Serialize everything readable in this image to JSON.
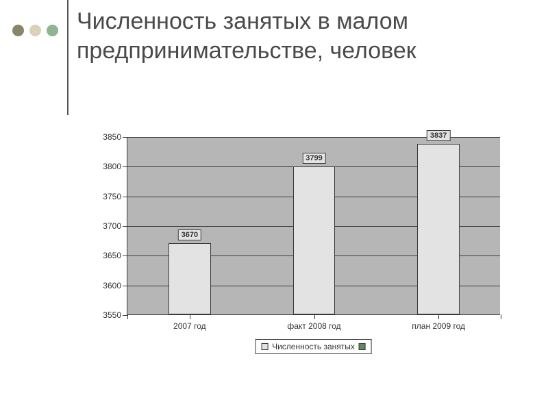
{
  "title": "Численность занятых в малом предпринимательстве, человек",
  "decor_dots": [
    "#8a8468",
    "#d9d2b8",
    "#8fb48f"
  ],
  "chart": {
    "type": "bar",
    "categories": [
      "2007 год",
      "факт 2008 год",
      "план 2009 год"
    ],
    "values": [
      3670,
      3799,
      3837
    ],
    "bar_color": "#e3e3e3",
    "bar_border": "#3a3a3a",
    "background_color": "#b6b6b6",
    "grid_color": "#3a3a3a",
    "ylim": [
      3550,
      3850
    ],
    "ytick_step": 50,
    "yticks": [
      3550,
      3600,
      3650,
      3700,
      3750,
      3800,
      3850
    ],
    "bar_width_ratio": 0.34,
    "label_fontsize": 12,
    "value_label_fontsize": 11
  },
  "legend": {
    "label": "Численность занятых",
    "swatch1_color": "#e3e3e3",
    "swatch2_color": "#5f8a5f"
  }
}
